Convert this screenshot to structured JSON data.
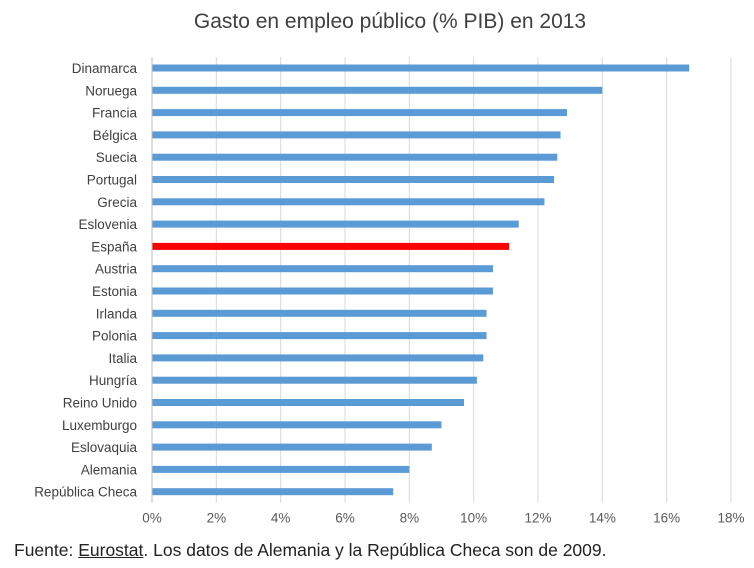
{
  "chart_data": {
    "type": "bar",
    "orientation": "horizontal",
    "title": "Gasto en empleo público (% PIB) en 2013",
    "categories": [
      "Dinamarca",
      "Noruega",
      "Francia",
      "Bélgica",
      "Suecia",
      "Portugal",
      "Grecia",
      "Eslovenia",
      "España",
      "Austria",
      "Estonia",
      "Irlanda",
      "Polonia",
      "Italia",
      "Hungría",
      "Reino Unido",
      "Luxemburgo",
      "Eslovaquia",
      "Alemania",
      "República Checa"
    ],
    "values": [
      16.7,
      14.0,
      12.9,
      12.7,
      12.6,
      12.5,
      12.2,
      11.4,
      11.1,
      10.6,
      10.6,
      10.4,
      10.4,
      10.3,
      10.1,
      9.7,
      9.0,
      8.7,
      8.0,
      7.5
    ],
    "highlight": "España",
    "bar_color": "#5b9bd5",
    "highlight_color": "#ff0000",
    "xlim": [
      0,
      18
    ],
    "xticks": [
      "0%",
      "2%",
      "4%",
      "6%",
      "8%",
      "10%",
      "12%",
      "14%",
      "16%",
      "18%"
    ],
    "xtick_values": [
      0,
      2,
      4,
      6,
      8,
      10,
      12,
      14,
      16,
      18
    ],
    "grid": true,
    "legend": "none"
  },
  "source": {
    "prefix": "Fuente: ",
    "link": "Eurostat",
    "suffix": ". Los datos de Alemania y la República Checa son de 2009."
  }
}
